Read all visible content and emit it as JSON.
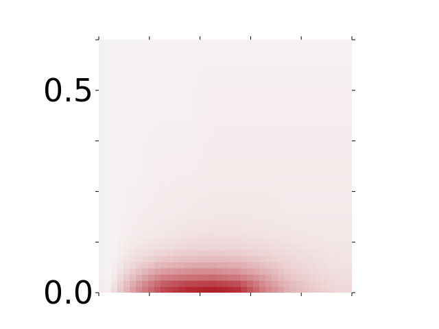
{
  "chart_data": {
    "type": "heatmap",
    "title": "",
    "xlabel": "",
    "ylabel": "",
    "xlim": [
      0,
      5
    ],
    "ylim": [
      0,
      0.625
    ],
    "x_ticks": [
      0,
      1,
      2,
      3,
      4,
      5
    ],
    "x_tick_labels": [
      "",
      "",
      "",
      "",
      "",
      ""
    ],
    "y_ticks": [
      0.0,
      0.125,
      0.25,
      0.375,
      0.5,
      0.625
    ],
    "y_tick_labels": [
      "0.0",
      "",
      "",
      "",
      "0.5",
      ""
    ],
    "colormap": {
      "low": "#eceef4",
      "mid": "#f7f2f2",
      "high": "#b0202a"
    },
    "grid": false,
    "legend": "none",
    "density_peak": {
      "x": 2.3,
      "y": 0.0,
      "relative_intensity": 1.0
    },
    "intensity_grid": {
      "x_centers": [
        0.25,
        0.75,
        1.25,
        1.75,
        2.25,
        2.75,
        3.25,
        3.75,
        4.25,
        4.75
      ],
      "y_centers": [
        0.0125,
        0.0375,
        0.0625,
        0.0875,
        0.1125,
        0.15,
        0.2,
        0.3,
        0.45,
        0.6
      ],
      "values": [
        [
          0.05,
          0.45,
          0.8,
          0.95,
          1.0,
          0.92,
          0.55,
          0.3,
          0.18,
          0.12
        ],
        [
          0.02,
          0.3,
          0.55,
          0.62,
          0.64,
          0.58,
          0.4,
          0.22,
          0.14,
          0.1
        ],
        [
          0.0,
          0.18,
          0.32,
          0.38,
          0.4,
          0.36,
          0.26,
          0.16,
          0.11,
          0.08
        ],
        [
          0.0,
          0.1,
          0.18,
          0.22,
          0.24,
          0.22,
          0.17,
          0.12,
          0.09,
          0.07
        ],
        [
          0.0,
          0.06,
          0.1,
          0.13,
          0.14,
          0.13,
          0.11,
          0.09,
          0.07,
          0.06
        ],
        [
          0.0,
          0.03,
          0.05,
          0.07,
          0.08,
          0.08,
          0.07,
          0.06,
          0.05,
          0.05
        ],
        [
          0.0,
          0.02,
          0.03,
          0.04,
          0.05,
          0.05,
          0.05,
          0.04,
          0.04,
          0.04
        ],
        [
          0.0,
          0.01,
          0.02,
          0.02,
          0.03,
          0.03,
          0.03,
          0.03,
          0.03,
          0.03
        ],
        [
          0.0,
          0.01,
          0.01,
          0.01,
          0.02,
          0.02,
          0.02,
          0.02,
          0.02,
          0.02
        ],
        [
          0.0,
          0.0,
          0.01,
          0.01,
          0.01,
          0.01,
          0.01,
          0.01,
          0.01,
          0.01
        ]
      ]
    }
  }
}
